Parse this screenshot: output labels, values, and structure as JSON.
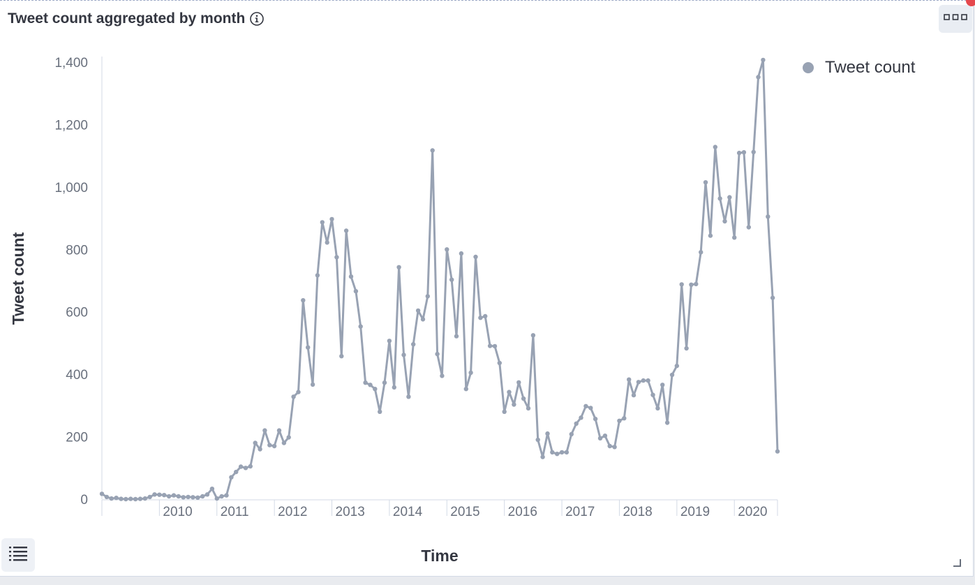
{
  "panel": {
    "title": "Tweet count aggregated by month",
    "icons": {
      "info": "info-circle-icon",
      "options": "horizontal-dots-icon",
      "legend_toggle": "list-icon",
      "resize": "resize-corner-icon"
    }
  },
  "colors": {
    "series": "#98a2b3",
    "axis": "#d3dae6",
    "alert_dot": "#e5484d"
  },
  "chart_data": {
    "type": "line",
    "xlabel": "Time",
    "ylabel": "Tweet count",
    "ylim": [
      0,
      1400
    ],
    "y_ticks": [
      0,
      200,
      400,
      600,
      800,
      1000,
      1200,
      1400
    ],
    "y_tick_labels": [
      "0",
      "200",
      "400",
      "600",
      "800",
      "1,000",
      "1,200",
      "1,400"
    ],
    "x_tick_labels": [
      "2010",
      "2011",
      "2012",
      "2013",
      "2014",
      "2015",
      "2016",
      "2017",
      "2018",
      "2019",
      "2020"
    ],
    "x_range": [
      "2009-01",
      "2020-10"
    ],
    "grid": false,
    "legend_position": "top-right",
    "series": [
      {
        "name": "Tweet count",
        "x": [
          "2009-01",
          "2009-02",
          "2009-03",
          "2009-04",
          "2009-05",
          "2009-06",
          "2009-07",
          "2009-08",
          "2009-09",
          "2009-10",
          "2009-11",
          "2009-12",
          "2010-01",
          "2010-02",
          "2010-03",
          "2010-04",
          "2010-05",
          "2010-06",
          "2010-07",
          "2010-08",
          "2010-09",
          "2010-10",
          "2010-11",
          "2010-12",
          "2011-01",
          "2011-02",
          "2011-03",
          "2011-04",
          "2011-05",
          "2011-06",
          "2011-07",
          "2011-08",
          "2011-09",
          "2011-10",
          "2011-11",
          "2011-12",
          "2012-01",
          "2012-02",
          "2012-03",
          "2012-04",
          "2012-05",
          "2012-06",
          "2012-07",
          "2012-08",
          "2012-09",
          "2012-10",
          "2012-11",
          "2012-12",
          "2013-01",
          "2013-02",
          "2013-03",
          "2013-04",
          "2013-05",
          "2013-06",
          "2013-07",
          "2013-08",
          "2013-09",
          "2013-10",
          "2013-11",
          "2013-12",
          "2014-01",
          "2014-02",
          "2014-03",
          "2014-04",
          "2014-05",
          "2014-06",
          "2014-07",
          "2014-08",
          "2014-09",
          "2014-10",
          "2014-11",
          "2014-12",
          "2015-01",
          "2015-02",
          "2015-03",
          "2015-04",
          "2015-05",
          "2015-06",
          "2015-07",
          "2015-08",
          "2015-09",
          "2015-10",
          "2015-11",
          "2015-12",
          "2016-01",
          "2016-02",
          "2016-03",
          "2016-04",
          "2016-05",
          "2016-06",
          "2016-07",
          "2016-08",
          "2016-09",
          "2016-10",
          "2016-11",
          "2016-12",
          "2017-01",
          "2017-02",
          "2017-03",
          "2017-04",
          "2017-05",
          "2017-06",
          "2017-07",
          "2017-08",
          "2017-09",
          "2017-10",
          "2017-11",
          "2017-12",
          "2018-01",
          "2018-02",
          "2018-03",
          "2018-04",
          "2018-05",
          "2018-06",
          "2018-07",
          "2018-08",
          "2018-09",
          "2018-10",
          "2018-11",
          "2018-12",
          "2019-01",
          "2019-02",
          "2019-03",
          "2019-04",
          "2019-05",
          "2019-06",
          "2019-07",
          "2019-08",
          "2019-09",
          "2019-10",
          "2019-11",
          "2019-12",
          "2020-01",
          "2020-02",
          "2020-03",
          "2020-04",
          "2020-05",
          "2020-06",
          "2020-07",
          "2020-08",
          "2020-09",
          "2020-10"
        ],
        "values": [
          17,
          7,
          2,
          4,
          1,
          0,
          1,
          0,
          1,
          2,
          7,
          15,
          14,
          13,
          9,
          12,
          9,
          6,
          7,
          6,
          5,
          9,
          15,
          33,
          2,
          9,
          12,
          70,
          87,
          104,
          100,
          105,
          180,
          160,
          220,
          173,
          170,
          220,
          180,
          198,
          328,
          343,
          637,
          486,
          367,
          717,
          887,
          822,
          897,
          775,
          458,
          860,
          713,
          666,
          553,
          373,
          366,
          353,
          280,
          373,
          507,
          358,
          743,
          462,
          328,
          496,
          604,
          576,
          650,
          1117,
          465,
          395,
          800,
          703,
          522,
          787,
          353,
          405,
          776,
          581,
          586,
          491,
          490,
          436,
          280,
          343,
          303,
          374,
          322,
          291,
          525,
          190,
          135,
          210,
          150,
          145,
          150,
          150,
          208,
          242,
          261,
          298,
          292,
          257,
          195,
          203,
          170,
          167,
          251,
          259,
          383,
          333,
          375,
          380,
          380,
          334,
          291,
          366,
          245,
          398,
          427,
          688,
          483,
          687,
          689,
          791,
          1015,
          844,
          1128,
          963,
          890,
          967,
          838,
          1109,
          1111,
          871,
          1112,
          1352,
          1407,
          905,
          645,
          153
        ]
      }
    ]
  }
}
